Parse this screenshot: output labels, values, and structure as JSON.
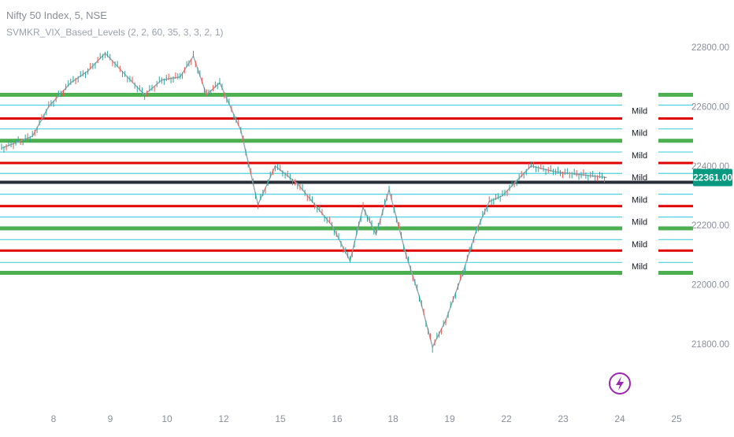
{
  "header": {
    "title": "Nifty 50 Index, 5, NSE",
    "indicator": "SVMKR_VIX_Based_Levels (2, 2, 60, 35, 3, 3, 2, 1)"
  },
  "colors": {
    "background": "#ffffff",
    "green_level": "#4caf50",
    "red_level": "#e00000",
    "cyan_level": "#4dd0e1",
    "current_level": "#2a2e39",
    "candle_up": "#26a69a",
    "candle_down": "#ef5350",
    "price_tag": "#089981",
    "axis_text": "#8a8e99",
    "icon": "#9c27b0"
  },
  "chart_data": {
    "type": "candlestick",
    "title": "Nifty 50 Index, 5, NSE",
    "x_tick_labels": [
      "8",
      "9",
      "10",
      "12",
      "15",
      "16",
      "18",
      "19",
      "22",
      "23",
      "24",
      "25"
    ],
    "y_tick_labels": [
      "22800.00",
      "22600.00",
      "22400.00",
      "22200.00",
      "22000.00",
      "21800.00"
    ],
    "y_ticks": [
      22800,
      22600,
      22400,
      22200,
      22000,
      21800
    ],
    "ylim": [
      21700,
      22900
    ],
    "current_price": 22361,
    "current_price_label": "22361.00",
    "level_label": "Mild",
    "levels": [
      {
        "value": 22640,
        "kind": "green"
      },
      {
        "value": 22605,
        "kind": "cyan"
      },
      {
        "value": 22560,
        "kind": "red"
      },
      {
        "value": 22525,
        "kind": "cyan"
      },
      {
        "value": 22485,
        "kind": "green"
      },
      {
        "value": 22447,
        "kind": "cyan"
      },
      {
        "value": 22410,
        "kind": "red"
      },
      {
        "value": 22375,
        "kind": "cyan"
      },
      {
        "value": 22345,
        "kind": "current"
      },
      {
        "value": 22305,
        "kind": "cyan"
      },
      {
        "value": 22265,
        "kind": "red"
      },
      {
        "value": 22228,
        "kind": "cyan"
      },
      {
        "value": 22190,
        "kind": "green"
      },
      {
        "value": 22152,
        "kind": "cyan"
      },
      {
        "value": 22115,
        "kind": "red"
      },
      {
        "value": 22075,
        "kind": "cyan"
      },
      {
        "value": 22040,
        "kind": "green"
      }
    ],
    "mild_labels": [
      22587,
      22512,
      22437,
      22362,
      22287,
      22212,
      22137,
      22062
    ],
    "price_path": [
      {
        "x": "8",
        "y": 22460
      },
      {
        "x": "8",
        "y": 22500
      },
      {
        "x": "8",
        "y": 22600
      },
      {
        "x": "9",
        "y": 22680
      },
      {
        "x": "9",
        "y": 22720
      },
      {
        "x": "9",
        "y": 22780
      },
      {
        "x": "10",
        "y": 22700
      },
      {
        "x": "10",
        "y": 22640
      },
      {
        "x": "10",
        "y": 22690
      },
      {
        "x": "12",
        "y": 22700
      },
      {
        "x": "12",
        "y": 22770
      },
      {
        "x": "12",
        "y": 22640
      },
      {
        "x": "12",
        "y": 22680
      },
      {
        "x": "15",
        "y": 22520
      },
      {
        "x": "15",
        "y": 22270
      },
      {
        "x": "15",
        "y": 22400
      },
      {
        "x": "16",
        "y": 22340
      },
      {
        "x": "16",
        "y": 22270
      },
      {
        "x": "16",
        "y": 22200
      },
      {
        "x": "18",
        "y": 22080
      },
      {
        "x": "18",
        "y": 22260
      },
      {
        "x": "18",
        "y": 22170
      },
      {
        "x": "18",
        "y": 22320
      },
      {
        "x": "19",
        "y": 22100
      },
      {
        "x": "19",
        "y": 21960
      },
      {
        "x": "19",
        "y": 21790
      },
      {
        "x": "19",
        "y": 21880
      },
      {
        "x": "22",
        "y": 22040
      },
      {
        "x": "22",
        "y": 22180
      },
      {
        "x": "22",
        "y": 22280
      },
      {
        "x": "22",
        "y": 22300
      },
      {
        "x": "23",
        "y": 22400
      },
      {
        "x": "23",
        "y": 22380
      },
      {
        "x": "24",
        "y": 22361
      }
    ]
  }
}
